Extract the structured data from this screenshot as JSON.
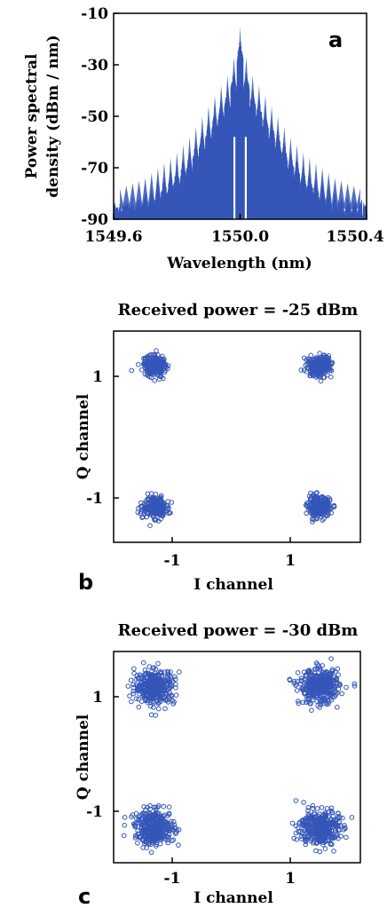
{
  "colors": {
    "series": "#3556b8",
    "axis": "#000000"
  },
  "chart_data": [
    {
      "panel": "a",
      "type": "line",
      "title": "",
      "xlabel": "Wavelength (nm)",
      "ylabel_lines": [
        "Power spectral",
        "density (dBm / nm)"
      ],
      "xlim": [
        1549.6,
        1550.4
      ],
      "ylim": [
        -90,
        -10
      ],
      "xticks": [
        "1549.6",
        "1550.0",
        "1550.4"
      ],
      "yticks": [
        "-10",
        "-30",
        "-50",
        "-70",
        "-90"
      ],
      "series": [
        {
          "comb_lines": [
            {
              "x": 1549.62,
              "y": -84
            },
            {
              "x": 1549.64,
              "y": -83
            },
            {
              "x": 1549.66,
              "y": -82
            },
            {
              "x": 1549.68,
              "y": -81
            },
            {
              "x": 1549.7,
              "y": -80
            },
            {
              "x": 1549.72,
              "y": -78
            },
            {
              "x": 1549.74,
              "y": -76
            },
            {
              "x": 1549.76,
              "y": -74
            },
            {
              "x": 1549.78,
              "y": -72
            },
            {
              "x": 1549.8,
              "y": -70
            },
            {
              "x": 1549.82,
              "y": -67
            },
            {
              "x": 1549.84,
              "y": -64
            },
            {
              "x": 1549.86,
              "y": -60
            },
            {
              "x": 1549.88,
              "y": -56
            },
            {
              "x": 1549.9,
              "y": -52
            },
            {
              "x": 1549.92,
              "y": -48
            },
            {
              "x": 1549.94,
              "y": -44
            },
            {
              "x": 1549.96,
              "y": -40
            },
            {
              "x": 1549.98,
              "y": -33
            },
            {
              "x": 1550.0,
              "y": -21
            },
            {
              "x": 1550.02,
              "y": -33
            },
            {
              "x": 1550.04,
              "y": -40
            },
            {
              "x": 1550.06,
              "y": -44
            },
            {
              "x": 1550.08,
              "y": -48
            },
            {
              "x": 1550.1,
              "y": -52
            },
            {
              "x": 1550.12,
              "y": -56
            },
            {
              "x": 1550.14,
              "y": -60
            },
            {
              "x": 1550.16,
              "y": -64
            },
            {
              "x": 1550.18,
              "y": -67
            },
            {
              "x": 1550.2,
              "y": -70
            },
            {
              "x": 1550.22,
              "y": -72
            },
            {
              "x": 1550.24,
              "y": -74
            },
            {
              "x": 1550.26,
              "y": -76
            },
            {
              "x": 1550.28,
              "y": -78
            },
            {
              "x": 1550.3,
              "y": -80
            },
            {
              "x": 1550.32,
              "y": -81
            },
            {
              "x": 1550.34,
              "y": -82
            },
            {
              "x": 1550.36,
              "y": -83
            },
            {
              "x": 1550.38,
              "y": -84
            }
          ],
          "noise_floor": -86
        }
      ],
      "grid": false
    },
    {
      "panel": "b",
      "type": "scatter",
      "title": "Received power = -25 dBm",
      "xlabel": "I channel",
      "ylabel": "Q channel",
      "xlim": [
        -1.5,
        1.5
      ],
      "ylim": [
        -1.5,
        1.5
      ],
      "xticks": [
        "-1",
        "1"
      ],
      "yticks": [
        "1",
        "-1"
      ],
      "clusters": [
        {
          "x": -1,
          "y": 1,
          "spread": 0.07,
          "points": 260
        },
        {
          "x": 1,
          "y": 1,
          "spread": 0.07,
          "points": 260
        },
        {
          "x": -1,
          "y": -1,
          "spread": 0.07,
          "points": 260
        },
        {
          "x": 1,
          "y": -1,
          "spread": 0.07,
          "points": 260
        }
      ],
      "grid": false
    },
    {
      "panel": "c",
      "type": "scatter",
      "title": "Received power = -30 dBm",
      "xlabel": "I channel",
      "ylabel": "Q channel",
      "xlim": [
        -1.5,
        1.5
      ],
      "ylim": [
        -1.5,
        1.5
      ],
      "xticks": [
        "-1",
        "1"
      ],
      "yticks": [
        "1",
        "-1"
      ],
      "clusters": [
        {
          "x": -1,
          "y": 1,
          "spread": 0.12,
          "points": 380
        },
        {
          "x": 1,
          "y": 1,
          "spread": 0.12,
          "points": 380
        },
        {
          "x": -1,
          "y": -1,
          "spread": 0.12,
          "points": 380
        },
        {
          "x": 1,
          "y": -1,
          "spread": 0.12,
          "points": 380
        }
      ],
      "grid": false
    }
  ],
  "labels": {
    "a": "a",
    "b": "b",
    "c": "c"
  }
}
